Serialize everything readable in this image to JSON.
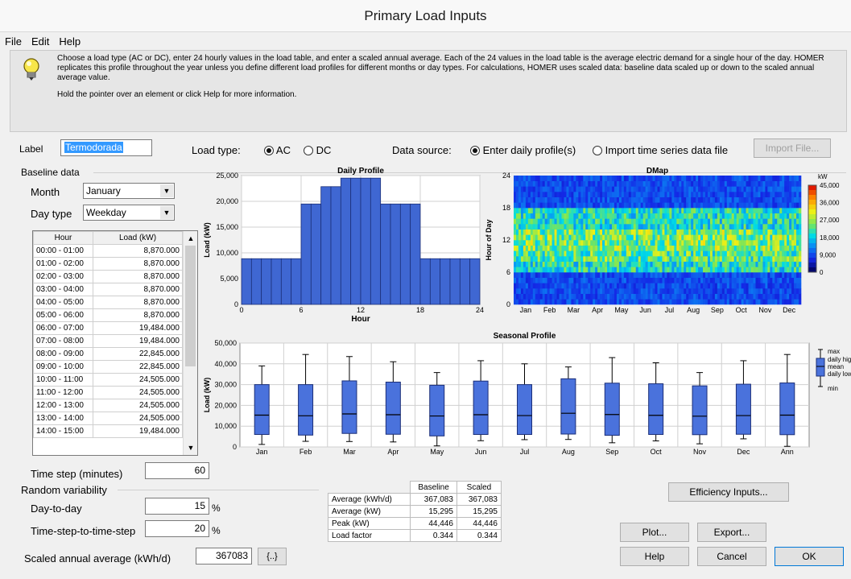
{
  "window": {
    "title": "Primary Load Inputs"
  },
  "menu": [
    "File",
    "Edit",
    "Help"
  ],
  "info": {
    "icon": "lightbulb-icon",
    "paragraph1": "Choose a load type (AC or DC), enter 24 hourly values in the load table, and enter a scaled annual average. Each of the 24 values in the load table is the average electric demand for a single hour of the day. HOMER replicates this profile throughout the year unless you define different load profiles for different months or day types. For calculations, HOMER uses scaled data: baseline data scaled up or down to the scaled annual average value.",
    "paragraph2": "Hold the pointer over an element or click Help for more information."
  },
  "label_field": {
    "label": "Label",
    "value": "Termodorada"
  },
  "load_type": {
    "label": "Load type:",
    "options": [
      "AC",
      "DC"
    ],
    "selected": "AC"
  },
  "data_source": {
    "label": "Data source:",
    "options": [
      "Enter daily profile(s)",
      "Import time series data file"
    ],
    "selected": "Enter daily profile(s)",
    "import_button": "Import File..."
  },
  "baseline": {
    "group_label": "Baseline data",
    "month_label": "Month",
    "month_value": "January",
    "daytype_label": "Day type",
    "daytype_value": "Weekday",
    "table_headers": [
      "Hour",
      "Load (kW)"
    ],
    "rows": [
      [
        "00:00 - 01:00",
        "8,870.000"
      ],
      [
        "01:00 - 02:00",
        "8,870.000"
      ],
      [
        "02:00 - 03:00",
        "8,870.000"
      ],
      [
        "03:00 - 04:00",
        "8,870.000"
      ],
      [
        "04:00 - 05:00",
        "8,870.000"
      ],
      [
        "05:00 - 06:00",
        "8,870.000"
      ],
      [
        "06:00 - 07:00",
        "19,484.000"
      ],
      [
        "07:00 - 08:00",
        "19,484.000"
      ],
      [
        "08:00 - 09:00",
        "22,845.000"
      ],
      [
        "09:00 - 10:00",
        "22,845.000"
      ],
      [
        "10:00 - 11:00",
        "24,505.000"
      ],
      [
        "11:00 - 12:00",
        "24,505.000"
      ],
      [
        "12:00 - 13:00",
        "24,505.000"
      ],
      [
        "13:00 - 14:00",
        "24,505.000"
      ],
      [
        "14:00 - 15:00",
        "19,484.000"
      ]
    ]
  },
  "time_step": {
    "label": "Time step (minutes)",
    "value": "60"
  },
  "random_variability": {
    "group_label": "Random variability",
    "day_to_day_label": "Day-to-day",
    "day_to_day_value": "15",
    "timestep_label": "Time-step-to-time-step",
    "timestep_value": "20",
    "unit": "%"
  },
  "scaled": {
    "label": "Scaled annual average (kWh/d)",
    "value": "367083",
    "button": "{..}"
  },
  "stats": {
    "headers": [
      "",
      "Baseline",
      "Scaled"
    ],
    "rows": [
      [
        "Average (kWh/d)",
        "367,083",
        "367,083"
      ],
      [
        "Average (kW)",
        "15,295",
        "15,295"
      ],
      [
        "Peak (kW)",
        "44,446",
        "44,446"
      ],
      [
        "Load factor",
        "0.344",
        "0.344"
      ]
    ]
  },
  "buttons": {
    "efficiency": "Efficiency Inputs...",
    "plot": "Plot...",
    "export": "Export...",
    "help": "Help",
    "cancel": "Cancel",
    "ok": "OK"
  },
  "colors": {
    "bar": "#3f67d2",
    "box": "#4a72dc"
  },
  "chart_data": [
    {
      "type": "bar",
      "title": "Daily Profile",
      "xlabel": "Hour",
      "ylabel": "Load (kW)",
      "xlim": [
        0,
        24
      ],
      "ylim": [
        0,
        25000
      ],
      "xticks": [
        "0",
        "6",
        "12",
        "18",
        "24"
      ],
      "yticks": [
        "0",
        "5,000",
        "10,000",
        "15,000",
        "20,000",
        "25,000"
      ],
      "values": [
        8870,
        8870,
        8870,
        8870,
        8870,
        8870,
        19484,
        19484,
        22845,
        22845,
        24505,
        24505,
        24505,
        24505,
        19484,
        19484,
        19484,
        19484,
        8870,
        8870,
        8870,
        8870,
        8870,
        8870
      ],
      "grid": true
    },
    {
      "type": "heatmap",
      "title": "DMap",
      "ylabel": "Hour of Day",
      "xticks": [
        "Jan",
        "Feb",
        "Mar",
        "Apr",
        "May",
        "Jun",
        "Jul",
        "Aug",
        "Sep",
        "Oct",
        "Nov",
        "Dec"
      ],
      "yticks": [
        "0",
        "6",
        "12",
        "18",
        "24"
      ],
      "colorbar_unit": "kW",
      "colorbar_ticks": [
        "45,000",
        "36,000",
        "27,000",
        "18,000",
        "9,000",
        "0"
      ],
      "hourly_base_kw": [
        8870,
        8870,
        8870,
        8870,
        8870,
        8870,
        19484,
        19484,
        22845,
        22845,
        24505,
        24505,
        24505,
        24505,
        19484,
        19484,
        19484,
        19484,
        8870,
        8870,
        8870,
        8870,
        8870,
        8870
      ]
    },
    {
      "type": "box",
      "title": "Seasonal Profile",
      "ylabel": "Load (kW)",
      "ylim": [
        0,
        50000
      ],
      "yticks": [
        "0",
        "10,000",
        "20,000",
        "30,000",
        "40,000",
        "50,000"
      ],
      "categories": [
        "Jan",
        "Feb",
        "Mar",
        "Apr",
        "May",
        "Jun",
        "Jul",
        "Aug",
        "Sep",
        "Oct",
        "Nov",
        "Dec",
        "Ann"
      ],
      "max": [
        39000,
        44500,
        43500,
        41000,
        35800,
        41500,
        40000,
        38500,
        43000,
        40500,
        35800,
        41500,
        44500
      ],
      "q3": [
        30000,
        30000,
        31800,
        31200,
        29700,
        31700,
        30000,
        32800,
        30700,
        30400,
        29400,
        30200,
        30800
      ],
      "mean": [
        15300,
        15000,
        15900,
        15500,
        14900,
        15500,
        15100,
        16200,
        15600,
        15200,
        14800,
        15100,
        15300
      ],
      "q1": [
        6000,
        5700,
        6500,
        6100,
        5300,
        6000,
        6000,
        6200,
        5600,
        6000,
        5900,
        6100,
        5900
      ],
      "min": [
        1200,
        2700,
        2600,
        2400,
        500,
        3000,
        3500,
        3600,
        2000,
        2900,
        1500,
        3900,
        300
      ],
      "legend": [
        "max",
        "daily high",
        "mean",
        "daily low",
        "min"
      ]
    }
  ]
}
